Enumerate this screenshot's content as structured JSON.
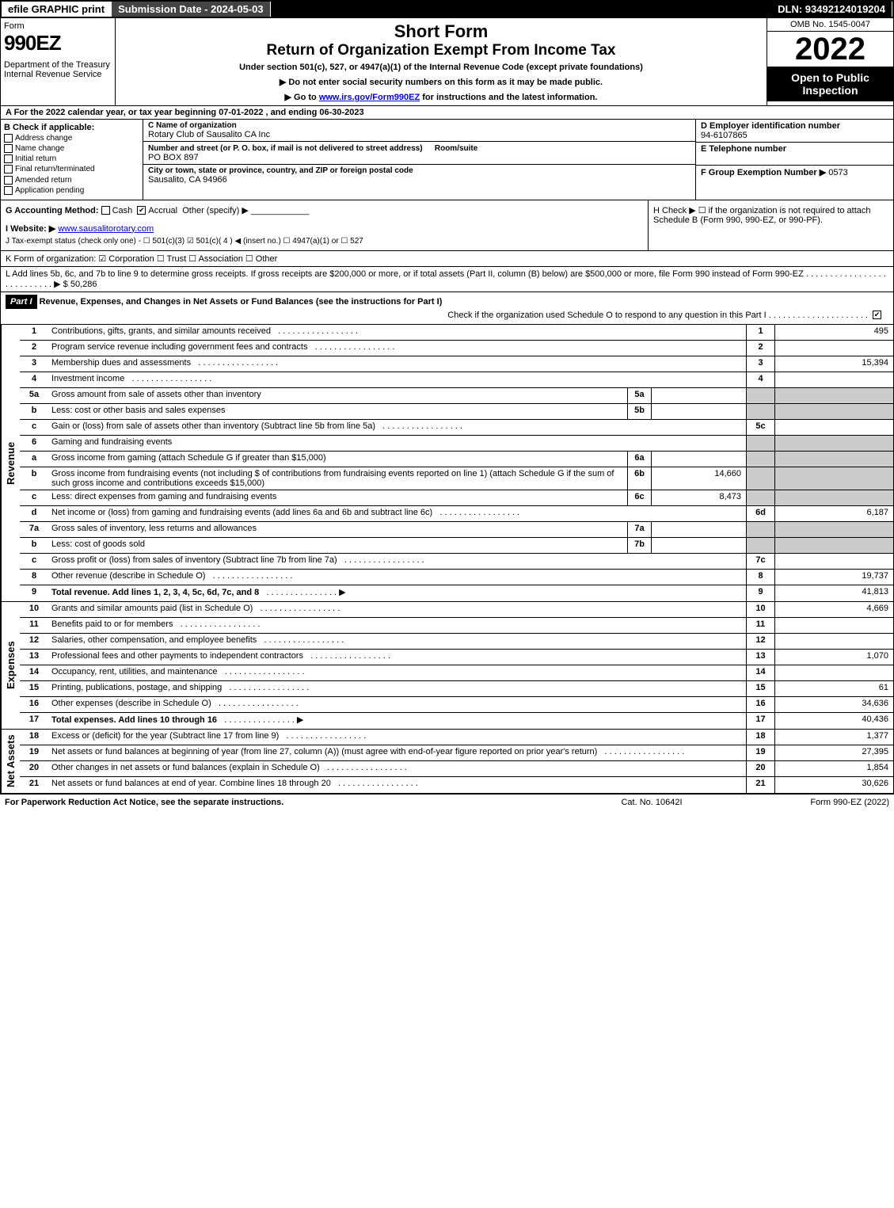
{
  "topbar": {
    "efile": "efile GRAPHIC print",
    "submission": "Submission Date - 2024-05-03",
    "dln": "DLN: 93492124019204"
  },
  "header": {
    "form_word": "Form",
    "form_num": "990EZ",
    "dept": "Department of the Treasury",
    "irs": "Internal Revenue Service",
    "short": "Short Form",
    "return_title": "Return of Organization Exempt From Income Tax",
    "under": "Under section 501(c), 527, or 4947(a)(1) of the Internal Revenue Code (except private foundations)",
    "ssn": "▶ Do not enter social security numbers on this form as it may be made public.",
    "goto_prefix": "▶ Go to ",
    "goto_link": "www.irs.gov/Form990EZ",
    "goto_suffix": " for instructions and the latest information.",
    "omb": "OMB No. 1545-0047",
    "year": "2022",
    "open": "Open to Public Inspection"
  },
  "row_a": "A  For the 2022 calendar year, or tax year beginning 07-01-2022 , and ending 06-30-2023",
  "b": {
    "hdr": "B  Check if applicable:",
    "opts": [
      "Address change",
      "Name change",
      "Initial return",
      "Final return/terminated",
      "Amended return",
      "Application pending"
    ]
  },
  "c": {
    "name_lbl": "C Name of organization",
    "name": "Rotary Club of Sausalito CA Inc",
    "street_lbl": "Number and street (or P. O. box, if mail is not delivered to street address)",
    "room_lbl": "Room/suite",
    "street": "PO BOX 897",
    "city_lbl": "City or town, state or province, country, and ZIP or foreign postal code",
    "city": "Sausalito, CA  94966"
  },
  "d": {
    "ein_lbl": "D Employer identification number",
    "ein": "94-6107865",
    "tel_lbl": "E Telephone number",
    "grp_lbl": "F Group Exemption Number  ▶",
    "grp": "0573"
  },
  "g": {
    "label": "G Accounting Method:",
    "cash": "Cash",
    "accrual": "Accrual",
    "other": "Other (specify) ▶"
  },
  "h": "H  Check ▶ ☐ if the organization is not required to attach Schedule B (Form 990, 990-EZ, or 990-PF).",
  "i": {
    "lbl": "I Website: ▶",
    "val": "www.sausalitorotary.com"
  },
  "j": "J Tax-exempt status (check only one) - ☐ 501(c)(3)  ☑ 501(c)( 4 ) ◀ (insert no.)  ☐ 4947(a)(1) or  ☐ 527",
  "k": "K Form of organization:  ☑ Corporation  ☐ Trust  ☐ Association  ☐ Other",
  "l": {
    "text": "L Add lines 5b, 6c, and 7b to line 9 to determine gross receipts. If gross receipts are $200,000 or more, or if total assets (Part II, column (B) below) are $500,000 or more, file Form 990 instead of Form 990-EZ  . . . . . . . . . . . . . . . . . . . . . . . . . . .  ▶",
    "amount": "$ 50,286"
  },
  "part1": {
    "hdr": "Part I",
    "title": "Revenue, Expenses, and Changes in Net Assets or Fund Balances (see the instructions for Part I)",
    "check_text": "Check if the organization used Schedule O to respond to any question in this Part I . . . . . . . . . . . . . . . . . . . . ."
  },
  "revenue": [
    {
      "n": "1",
      "d": "Contributions, gifts, grants, and similar amounts received",
      "r": "1",
      "v": "495"
    },
    {
      "n": "2",
      "d": "Program service revenue including government fees and contracts",
      "r": "2",
      "v": ""
    },
    {
      "n": "3",
      "d": "Membership dues and assessments",
      "r": "3",
      "v": "15,394"
    },
    {
      "n": "4",
      "d": "Investment income",
      "r": "4",
      "v": ""
    },
    {
      "n": "5a",
      "d": "Gross amount from sale of assets other than inventory",
      "sub": "5a",
      "sv": ""
    },
    {
      "n": "b",
      "d": "Less: cost or other basis and sales expenses",
      "sub": "5b",
      "sv": ""
    },
    {
      "n": "c",
      "d": "Gain or (loss) from sale of assets other than inventory (Subtract line 5b from line 5a)",
      "r": "5c",
      "v": ""
    },
    {
      "n": "6",
      "d": "Gaming and fundraising events",
      "plain": true
    },
    {
      "n": "a",
      "d": "Gross income from gaming (attach Schedule G if greater than $15,000)",
      "sub": "6a",
      "sv": ""
    },
    {
      "n": "b",
      "d": "Gross income from fundraising events (not including $              of contributions from fundraising events reported on line 1) (attach Schedule G if the sum of such gross income and contributions exceeds $15,000)",
      "sub": "6b",
      "sv": "14,660"
    },
    {
      "n": "c",
      "d": "Less: direct expenses from gaming and fundraising events",
      "sub": "6c",
      "sv": "8,473"
    },
    {
      "n": "d",
      "d": "Net income or (loss) from gaming and fundraising events (add lines 6a and 6b and subtract line 6c)",
      "r": "6d",
      "v": "6,187"
    },
    {
      "n": "7a",
      "d": "Gross sales of inventory, less returns and allowances",
      "sub": "7a",
      "sv": ""
    },
    {
      "n": "b",
      "d": "Less: cost of goods sold",
      "sub": "7b",
      "sv": ""
    },
    {
      "n": "c",
      "d": "Gross profit or (loss) from sales of inventory (Subtract line 7b from line 7a)",
      "r": "7c",
      "v": ""
    },
    {
      "n": "8",
      "d": "Other revenue (describe in Schedule O)",
      "r": "8",
      "v": "19,737"
    },
    {
      "n": "9",
      "d": "Total revenue. Add lines 1, 2, 3, 4, 5c, 6d, 7c, and 8",
      "r": "9",
      "v": "41,813",
      "bold": true,
      "arrow": true
    }
  ],
  "expenses": [
    {
      "n": "10",
      "d": "Grants and similar amounts paid (list in Schedule O)",
      "r": "10",
      "v": "4,669"
    },
    {
      "n": "11",
      "d": "Benefits paid to or for members",
      "r": "11",
      "v": ""
    },
    {
      "n": "12",
      "d": "Salaries, other compensation, and employee benefits",
      "r": "12",
      "v": ""
    },
    {
      "n": "13",
      "d": "Professional fees and other payments to independent contractors",
      "r": "13",
      "v": "1,070"
    },
    {
      "n": "14",
      "d": "Occupancy, rent, utilities, and maintenance",
      "r": "14",
      "v": ""
    },
    {
      "n": "15",
      "d": "Printing, publications, postage, and shipping",
      "r": "15",
      "v": "61"
    },
    {
      "n": "16",
      "d": "Other expenses (describe in Schedule O)",
      "r": "16",
      "v": "34,636"
    },
    {
      "n": "17",
      "d": "Total expenses. Add lines 10 through 16",
      "r": "17",
      "v": "40,436",
      "bold": true,
      "arrow": true
    }
  ],
  "netassets": [
    {
      "n": "18",
      "d": "Excess or (deficit) for the year (Subtract line 17 from line 9)",
      "r": "18",
      "v": "1,377"
    },
    {
      "n": "19",
      "d": "Net assets or fund balances at beginning of year (from line 27, column (A)) (must agree with end-of-year figure reported on prior year's return)",
      "r": "19",
      "v": "27,395"
    },
    {
      "n": "20",
      "d": "Other changes in net assets or fund balances (explain in Schedule O)",
      "r": "20",
      "v": "1,854"
    },
    {
      "n": "21",
      "d": "Net assets or fund balances at end of year. Combine lines 18 through 20",
      "r": "21",
      "v": "30,626"
    }
  ],
  "footer": {
    "l": "For Paperwork Reduction Act Notice, see the separate instructions.",
    "c": "Cat. No. 10642I",
    "r": "Form 990-EZ (2022)"
  },
  "side_labels": {
    "rev": "Revenue",
    "exp": "Expenses",
    "net": "Net Assets"
  }
}
